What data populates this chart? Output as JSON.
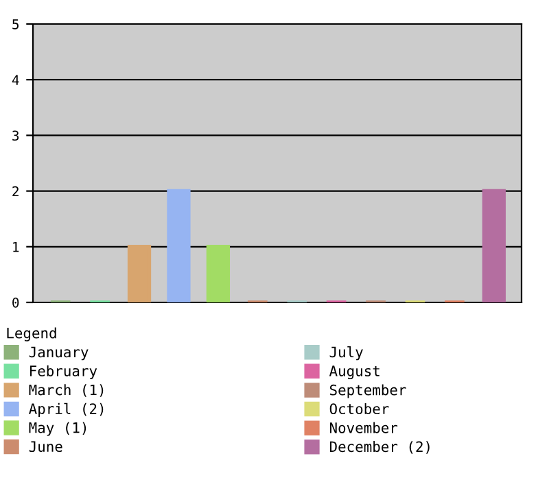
{
  "chart_data": {
    "type": "bar",
    "categories": [
      null,
      null,
      null,
      null,
      null,
      null,
      null,
      null,
      null,
      null,
      null,
      null
    ],
    "series": [
      {
        "name": "January",
        "color": "#8db27a",
        "values": [
          0,
          null,
          null,
          null,
          null,
          null,
          null,
          null,
          null,
          null,
          null,
          null
        ]
      },
      {
        "name": "February",
        "color": "#78e0a0",
        "values": [
          null,
          0,
          null,
          null,
          null,
          null,
          null,
          null,
          null,
          null,
          null,
          null
        ]
      },
      {
        "name": "March (1)",
        "color": "#d8a56e",
        "values": [
          null,
          null,
          1,
          null,
          null,
          null,
          null,
          null,
          null,
          null,
          null,
          null
        ]
      },
      {
        "name": "April (2)",
        "color": "#96b4f2",
        "values": [
          null,
          null,
          null,
          2,
          null,
          null,
          null,
          null,
          null,
          null,
          null,
          null
        ]
      },
      {
        "name": "May (1)",
        "color": "#a2dc64",
        "values": [
          null,
          null,
          null,
          null,
          1,
          null,
          null,
          null,
          null,
          null,
          null,
          null
        ]
      },
      {
        "name": "June",
        "color": "#cc8c6e",
        "values": [
          null,
          null,
          null,
          null,
          null,
          0,
          null,
          null,
          null,
          null,
          null,
          null
        ]
      },
      {
        "name": "July",
        "color": "#a8ccc8",
        "values": [
          null,
          null,
          null,
          null,
          null,
          null,
          0,
          null,
          null,
          null,
          null,
          null
        ]
      },
      {
        "name": "August",
        "color": "#dc64a0",
        "values": [
          null,
          null,
          null,
          null,
          null,
          null,
          null,
          0,
          null,
          null,
          null,
          null
        ]
      },
      {
        "name": "September",
        "color": "#be8c78",
        "values": [
          null,
          null,
          null,
          null,
          null,
          null,
          null,
          null,
          0,
          null,
          null,
          null
        ]
      },
      {
        "name": "October",
        "color": "#dcdc78",
        "values": [
          null,
          null,
          null,
          null,
          null,
          null,
          null,
          null,
          null,
          0,
          null,
          null
        ]
      },
      {
        "name": "November",
        "color": "#e08264",
        "values": [
          null,
          null,
          null,
          null,
          null,
          null,
          null,
          null,
          null,
          null,
          0,
          null
        ]
      },
      {
        "name": "December (2)",
        "color": "#b46ea0",
        "values": [
          null,
          null,
          null,
          null,
          null,
          null,
          null,
          null,
          null,
          null,
          null,
          2
        ]
      }
    ],
    "ylim": [
      0,
      5
    ],
    "yticks": [
      0,
      1,
      2,
      3,
      4,
      5
    ],
    "grid": "y",
    "legend": "bottom",
    "legend_title": "Legend"
  }
}
